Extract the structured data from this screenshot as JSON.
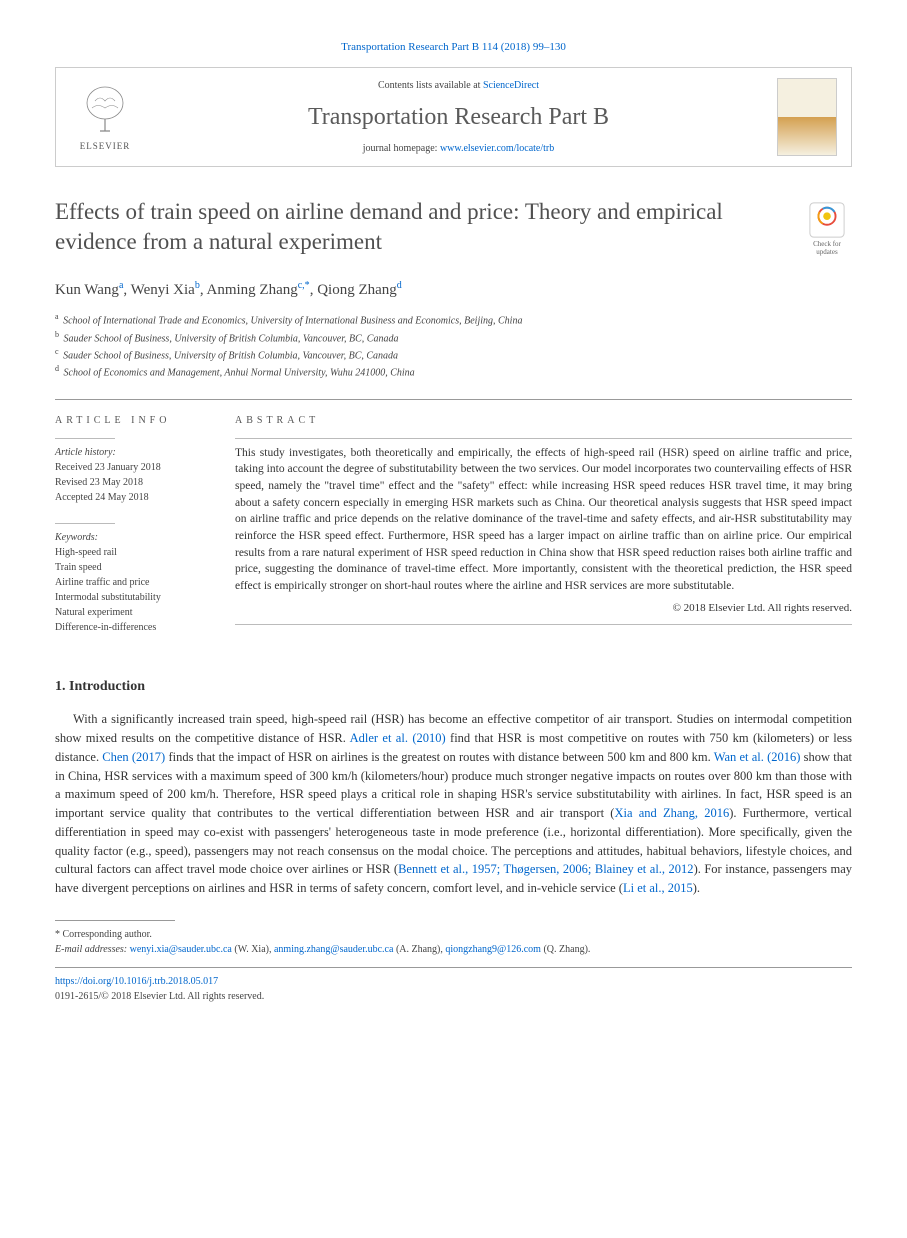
{
  "citation": "Transportation Research Part B 114 (2018) 99–130",
  "header": {
    "contents_prefix": "Contents lists available at ",
    "contents_link": "ScienceDirect",
    "journal_name": "Transportation Research Part B",
    "homepage_prefix": "journal homepage: ",
    "homepage_link": "www.elsevier.com/locate/trb",
    "publisher": "ELSEVIER"
  },
  "title": "Effects of train speed on airline demand and price: Theory and empirical evidence from a natural experiment",
  "check_updates": "Check for updates",
  "authors_html": "Kun Wang<sup>a</sup>, Wenyi Xia<sup>b</sup>, Anming Zhang<sup>c,*</sup>, Qiong Zhang<sup>d</sup>",
  "affiliations": [
    {
      "sup": "a",
      "text": "School of International Trade and Economics, University of International Business and Economics, Beijing, China"
    },
    {
      "sup": "b",
      "text": "Sauder School of Business, University of British Columbia, Vancouver, BC, Canada"
    },
    {
      "sup": "c",
      "text": "Sauder School of Business, University of British Columbia, Vancouver, BC, Canada"
    },
    {
      "sup": "d",
      "text": "School of Economics and Management, Anhui Normal University, Wuhu 241000, China"
    }
  ],
  "article_info": {
    "label": "ARTICLE INFO",
    "history_label": "Article history:",
    "received": "Received 23 January 2018",
    "revised": "Revised 23 May 2018",
    "accepted": "Accepted 24 May 2018",
    "keywords_label": "Keywords:",
    "keywords": [
      "High-speed rail",
      "Train speed",
      "Airline traffic and price",
      "Intermodal substitutability",
      "Natural experiment",
      "Difference-in-differences"
    ]
  },
  "abstract": {
    "label": "ABSTRACT",
    "text": "This study investigates, both theoretically and empirically, the effects of high-speed rail (HSR) speed on airline traffic and price, taking into account the degree of substitutability between the two services. Our model incorporates two countervailing effects of HSR speed, namely the \"travel time\" effect and the \"safety\" effect: while increasing HSR speed reduces HSR travel time, it may bring about a safety concern especially in emerging HSR markets such as China. Our theoretical analysis suggests that HSR speed impact on airline traffic and price depends on the relative dominance of the travel-time and safety effects, and air-HSR substitutability may reinforce the HSR speed effect. Furthermore, HSR speed has a larger impact on airline traffic than on airline price. Our empirical results from a rare natural experiment of HSR speed reduction in China show that HSR speed reduction raises both airline traffic and price, suggesting the dominance of travel-time effect. More importantly, consistent with the theoretical prediction, the HSR speed effect is empirically stronger on short-haul routes where the airline and HSR services are more substitutable.",
    "copyright": "© 2018 Elsevier Ltd. All rights reserved."
  },
  "intro": {
    "heading": "1. Introduction",
    "p1_pre": "With a significantly increased train speed, high-speed rail (HSR) has become an effective competitor of air transport. Studies on intermodal competition show mixed results on the competitive distance of HSR. ",
    "adler": "Adler et al. (2010)",
    "p1_mid1": " find that HSR is most competitive on routes with 750 km (kilometers) or less distance. ",
    "chen": "Chen (2017)",
    "p1_mid2": " finds that the impact of HSR on airlines is the greatest on routes with distance between 500 km and 800 km. ",
    "wan": "Wan et al. (2016)",
    "p1_mid3": " show that in China, HSR services with a maximum speed of 300 km/h (kilometers/hour) produce much stronger negative impacts on routes over 800 km than those with a maximum speed of 200 km/h. Therefore, HSR speed plays a critical role in shaping HSR's service substitutability with airlines. In fact, HSR speed is an important service quality that contributes to the vertical differentiation between HSR and air transport (",
    "xia": "Xia and Zhang, 2016",
    "p1_mid4": "). Furthermore, vertical differentiation in speed may co-exist with passengers' heterogeneous taste in mode preference (i.e., horizontal differentiation). More specifically, given the quality factor (e.g., speed), passengers may not reach consensus on the modal choice. The perceptions and attitudes, habitual behaviors, lifestyle choices, and cultural factors can affect travel mode choice over airlines or HSR (",
    "bennett": "Bennett et al., 1957; Thøgersen, 2006; Blainey et al., 2012",
    "p1_mid5": "). For instance, passengers may have divergent perceptions on airlines and HSR in terms of safety concern, comfort level, and in-vehicle service (",
    "li": "Li et al., 2015",
    "p1_end": ")."
  },
  "footnotes": {
    "corresponding": "Corresponding author.",
    "email_label": "E-mail addresses: ",
    "emails": [
      {
        "addr": "wenyi.xia@sauder.ubc.ca",
        "who": " (W. Xia), "
      },
      {
        "addr": "anming.zhang@sauder.ubc.ca",
        "who": " (A. Zhang), "
      },
      {
        "addr": "qiongzhang9@126.com",
        "who": " (Q. Zhang)."
      }
    ]
  },
  "footer": {
    "doi": "https://doi.org/10.1016/j.trb.2018.05.017",
    "issn_line": "0191-2615/© 2018 Elsevier Ltd. All rights reserved."
  },
  "colors": {
    "link": "#0066cc",
    "text": "#333333",
    "heading": "#505050",
    "border": "#cccccc"
  }
}
